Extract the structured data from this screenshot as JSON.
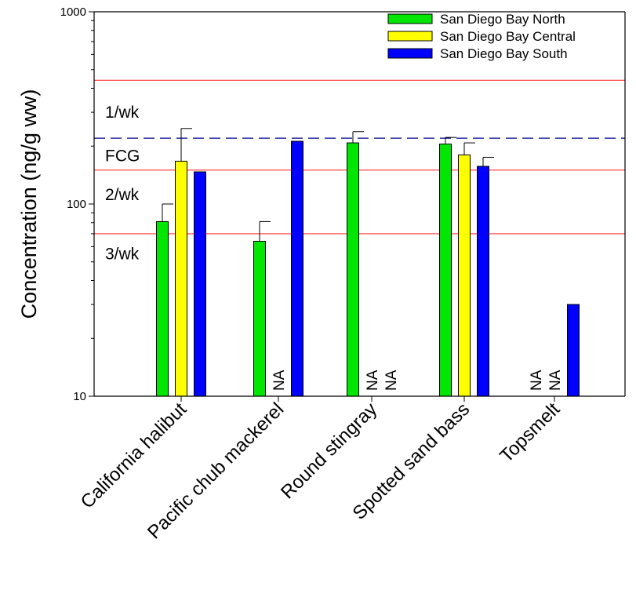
{
  "chart_data": {
    "type": "bar",
    "ylabel": "Concentration (ng/g ww)",
    "yscale": "log",
    "ylim": [
      10,
      1000
    ],
    "yticks": [
      {
        "value": 10,
        "label": "10"
      },
      {
        "value": 100,
        "label": "100"
      },
      {
        "value": 1000,
        "label": "1000"
      }
    ],
    "categories": [
      "California halibut",
      "Pacific chub mackerel",
      "Round stingray",
      "Spotted sand bass",
      "Topsmelt"
    ],
    "series": [
      {
        "name": "San Diego Bay North",
        "color": "#00e600",
        "values": [
          81,
          64,
          208,
          205,
          null
        ],
        "errors": [
          19,
          17,
          30,
          17,
          null
        ]
      },
      {
        "name": "San Diego Bay Central",
        "color": "#ffff00",
        "values": [
          167,
          null,
          null,
          180,
          null
        ],
        "errors": [
          80,
          null,
          null,
          28,
          null
        ]
      },
      {
        "name": "San Diego Bay South",
        "color": "#0000ff",
        "values": [
          147,
          212,
          null,
          157,
          30
        ],
        "errors": [
          null,
          null,
          null,
          18,
          null
        ]
      }
    ],
    "na_label": "NA",
    "reference_lines": [
      {
        "value": 440,
        "style": "solid",
        "color": "#ff3333",
        "label": ""
      },
      {
        "value": 220,
        "style": "dashed",
        "color": "#00008b",
        "label": ""
      },
      {
        "value": 150,
        "style": "solid",
        "color": "#ff3333",
        "label": ""
      },
      {
        "value": 70,
        "style": "solid",
        "color": "#ff3333",
        "label": ""
      }
    ],
    "region_labels": [
      {
        "text": "1/wk",
        "value": 300
      },
      {
        "text": "FCG",
        "value": 178
      },
      {
        "text": "2/wk",
        "value": 112
      },
      {
        "text": "3/wk",
        "value": 55
      }
    ],
    "legend_position": "top-right",
    "grid": false
  }
}
